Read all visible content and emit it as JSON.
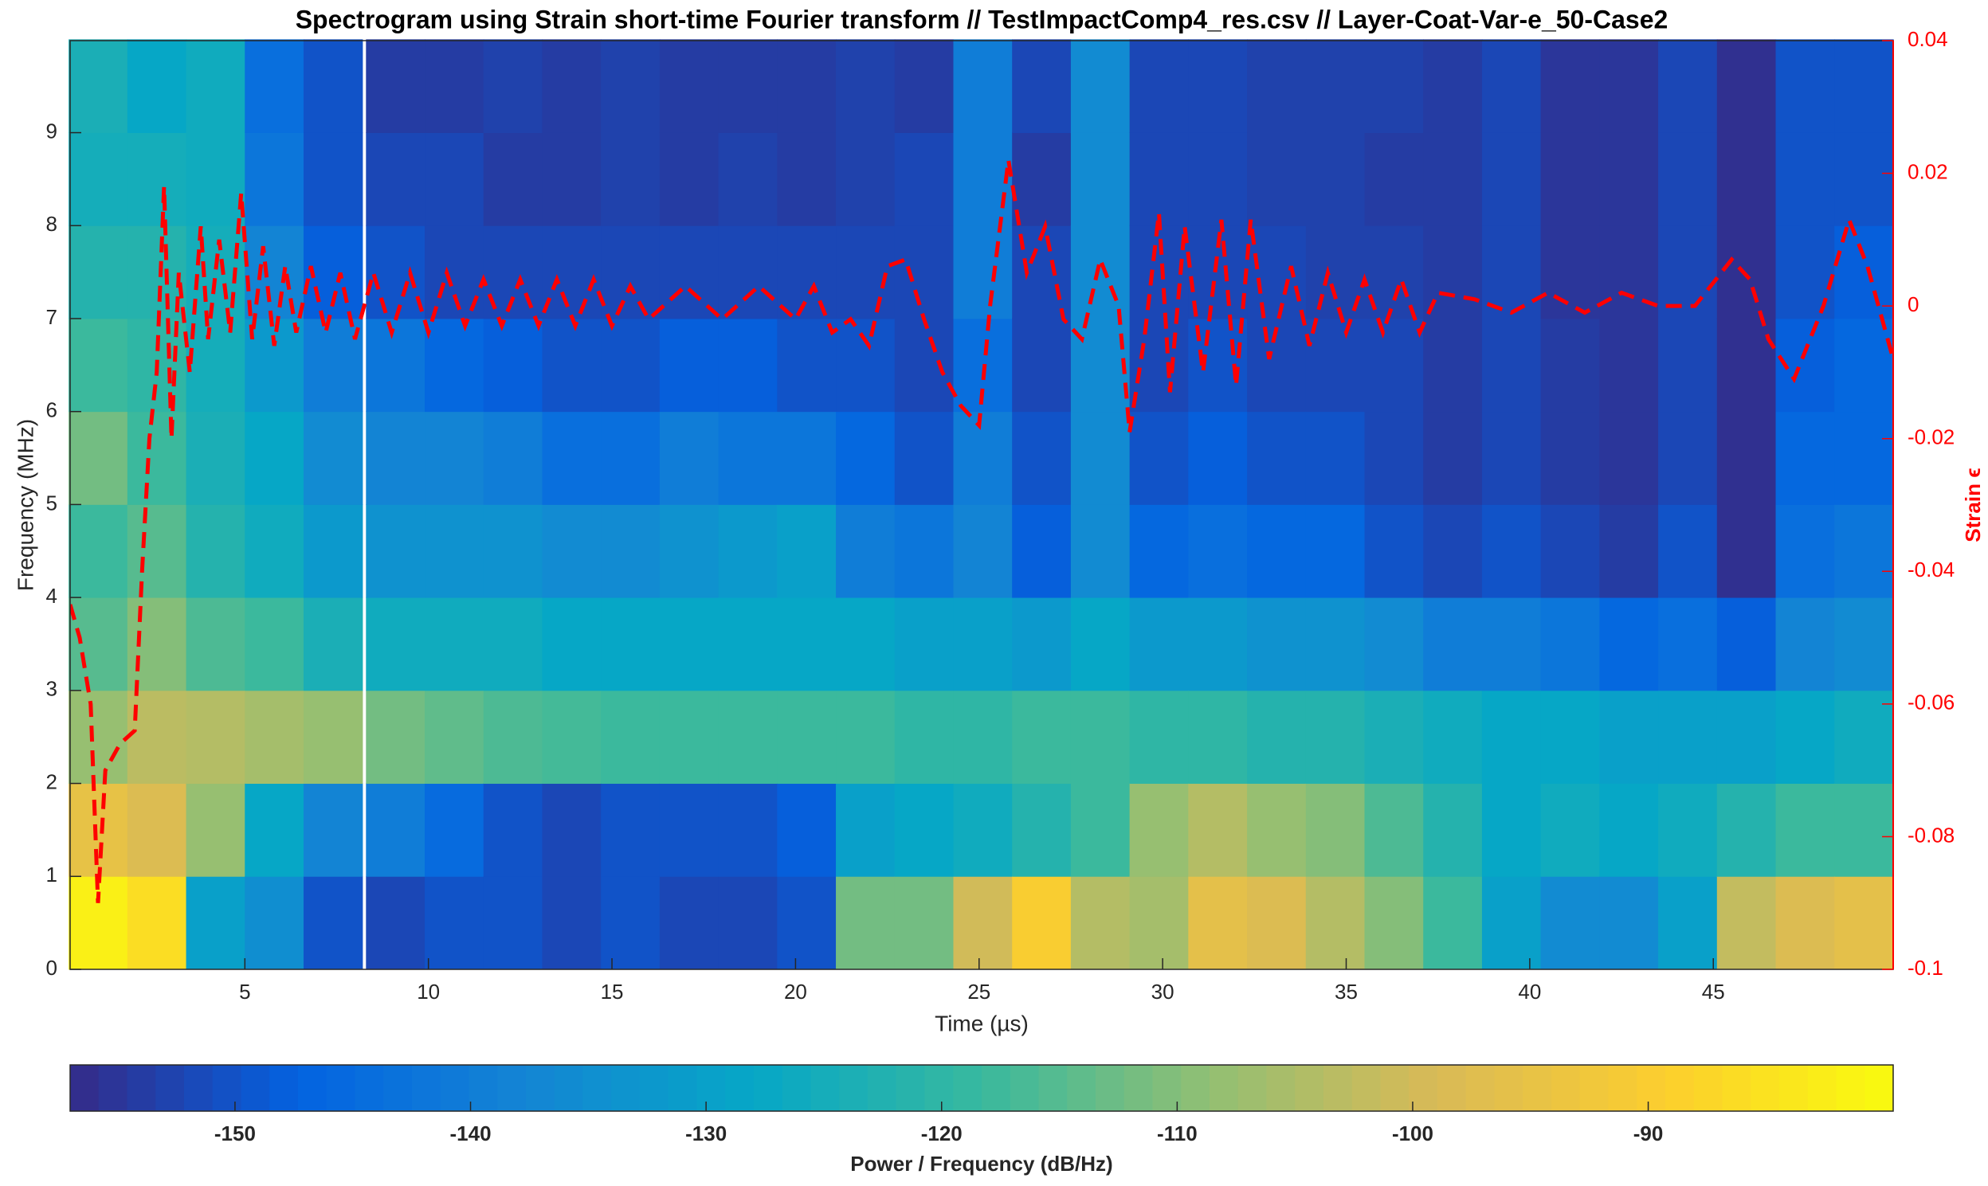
{
  "chart_data": {
    "type": "heatmap",
    "title": "Spectrogram using Strain short-time Fourier transform //  TestImpactComp4_res.csv  // Layer-Coat-Var-e_50-Case2",
    "x_label": "Time (µs)",
    "y_label": "Frequency (MHz)",
    "y2_label": "Strain ϵ",
    "colorbar_label": "Power / Frequency (dB/Hz)",
    "x": [
      1.0,
      2.6,
      4.2,
      5.8,
      7.4,
      9.1,
      10.7,
      12.3,
      13.9,
      15.5,
      17.1,
      18.7,
      20.3,
      21.9,
      23.5,
      25.1,
      26.7,
      28.3,
      29.9,
      31.5,
      33.1,
      34.7,
      36.3,
      37.9,
      39.5,
      41.1,
      42.7,
      44.3,
      45.9,
      47.5,
      49.1
    ],
    "y": [
      0.5,
      1.5,
      2.5,
      3.5,
      4.5,
      5.5,
      6.5,
      7.5,
      8.5,
      9.5
    ],
    "z": [
      [
        -82,
        -95,
        -108,
        -115,
        -118,
        -112,
        -118,
        -122,
        -125,
        -124
      ],
      [
        -86,
        -98,
        -103,
        -110,
        -115,
        -118,
        -120,
        -122,
        -125,
        -128
      ],
      [
        -130,
        -108,
        -104,
        -116,
        -122,
        -124,
        -125,
        -125,
        -126,
        -126
      ],
      [
        -135,
        -128,
        -106,
        -118,
        -126,
        -128,
        -132,
        -138,
        -142,
        -144
      ],
      [
        -150,
        -138,
        -108,
        -124,
        -132,
        -136,
        -140,
        -148,
        -150,
        -150
      ],
      [
        -152,
        -140,
        -112,
        -126,
        -134,
        -138,
        -142,
        -150,
        -152,
        -154
      ],
      [
        -150,
        -145,
        -114,
        -126,
        -134,
        -138,
        -146,
        -152,
        -152,
        -154
      ],
      [
        -150,
        -150,
        -116,
        -126,
        -134,
        -140,
        -148,
        -152,
        -154,
        -153
      ],
      [
        -152,
        -152,
        -117,
        -128,
        -136,
        -144,
        -150,
        -152,
        -154,
        -154
      ],
      [
        -150,
        -150,
        -118,
        -128,
        -136,
        -144,
        -150,
        -152,
        -153,
        -153
      ],
      [
        -152,
        -150,
        -118,
        -128,
        -134,
        -140,
        -148,
        -152,
        -154,
        -154
      ],
      [
        -152,
        -150,
        -118,
        -128,
        -132,
        -142,
        -148,
        -152,
        -153,
        -154
      ],
      [
        -150,
        -148,
        -118,
        -128,
        -130,
        -142,
        -150,
        -152,
        -154,
        -154
      ],
      [
        -112,
        -130,
        -118,
        -128,
        -140,
        -146,
        -150,
        -152,
        -153,
        -153
      ],
      [
        -112,
        -128,
        -120,
        -130,
        -142,
        -150,
        -152,
        -152,
        -152,
        -154
      ],
      [
        -100,
        -126,
        -120,
        -130,
        -138,
        -140,
        -144,
        -140,
        -140,
        -140
      ],
      [
        -90,
        -122,
        -118,
        -132,
        -148,
        -150,
        -152,
        -152,
        -154,
        -152
      ],
      [
        -104,
        -118,
        -118,
        -128,
        -136,
        -136,
        -136,
        -136,
        -136,
        -136
      ],
      [
        -106,
        -108,
        -120,
        -132,
        -146,
        -150,
        -152,
        -152,
        -152,
        -152
      ],
      [
        -96,
        -104,
        -120,
        -132,
        -144,
        -148,
        -150,
        -152,
        -152,
        -152
      ],
      [
        -98,
        -108,
        -122,
        -134,
        -146,
        -150,
        -152,
        -152,
        -153,
        -153
      ],
      [
        -104,
        -110,
        -122,
        -134,
        -146,
        -150,
        -152,
        -153,
        -153,
        -153
      ],
      [
        -110,
        -116,
        -124,
        -136,
        -150,
        -152,
        -152,
        -153,
        -154,
        -153
      ],
      [
        -118,
        -122,
        -126,
        -140,
        -152,
        -154,
        -154,
        -154,
        -154,
        -154
      ],
      [
        -130,
        -128,
        -128,
        -140,
        -150,
        -152,
        -152,
        -152,
        -152,
        -152
      ],
      [
        -136,
        -126,
        -128,
        -142,
        -152,
        -154,
        -154,
        -155,
        -155,
        -155
      ],
      [
        -136,
        -128,
        -130,
        -146,
        -154,
        -155,
        -155,
        -155,
        -155,
        -155
      ],
      [
        -130,
        -126,
        -130,
        -144,
        -150,
        -152,
        -152,
        -152,
        -152,
        -152
      ],
      [
        -102,
        -122,
        -130,
        -148,
        -156,
        -156,
        -156,
        -156,
        -156,
        -156
      ],
      [
        -98,
        -118,
        -128,
        -138,
        -144,
        -146,
        -148,
        -150,
        -150,
        -150
      ],
      [
        -96,
        -118,
        -126,
        -136,
        -142,
        -146,
        -146,
        -148,
        -150,
        -150
      ]
    ],
    "colormap": [
      "#352a87",
      "#0363e1",
      "#1485d4",
      "#06a7c6",
      "#38b99e",
      "#92bf73",
      "#d9ba56",
      "#fcce2e",
      "#f9fb0e"
    ],
    "clim": [
      -157,
      -79.6
    ],
    "cticks": [
      -150,
      -140,
      -130,
      -120,
      -110,
      -100,
      -90
    ],
    "xlim": [
      0.24,
      49.9
    ],
    "xticks": [
      5,
      10,
      15,
      20,
      25,
      30,
      35,
      40,
      45
    ],
    "ylim": [
      0,
      9.99
    ],
    "yticks": [
      0,
      1,
      2,
      3,
      4,
      5,
      6,
      7,
      8,
      9
    ],
    "y2lim": [
      -0.1,
      0.04
    ],
    "y2ticks": [
      -0.1,
      -0.08,
      -0.06,
      -0.04,
      -0.02,
      0,
      0.02,
      0.04
    ],
    "overlay": {
      "color": "#ff0000",
      "axis": "y2",
      "x": [
        0.24,
        0.5,
        0.8,
        1.0,
        1.2,
        1.6,
        2.0,
        2.2,
        2.4,
        2.6,
        2.8,
        3.0,
        3.2,
        3.5,
        3.8,
        4.0,
        4.3,
        4.6,
        4.9,
        5.2,
        5.5,
        5.8,
        6.1,
        6.4,
        6.8,
        7.2,
        7.6,
        8.0,
        8.5,
        9,
        9.5,
        10,
        10.5,
        11,
        11.5,
        12,
        12.5,
        13,
        13.5,
        14,
        14.5,
        15,
        15.5,
        16,
        17,
        18,
        19,
        20,
        20.5,
        21,
        21.5,
        22,
        22.5,
        23,
        23.5,
        24,
        24.5,
        25,
        25.3,
        25.8,
        26.3,
        26.8,
        27.3,
        27.8,
        28.3,
        28.8,
        29.1,
        29.5,
        29.9,
        30.2,
        30.6,
        31.1,
        31.6,
        32.0,
        32.4,
        32.9,
        33.5,
        34,
        34.5,
        35,
        35.5,
        36,
        36.5,
        37,
        37.5,
        38.5,
        39.5,
        40.5,
        41.5,
        42.5,
        43.5,
        44.5,
        45.5,
        46,
        46.5,
        47.2,
        48,
        48.7,
        49.2,
        49.9
      ],
      "values": [
        -0.045,
        -0.05,
        -0.06,
        -0.09,
        -0.07,
        -0.066,
        -0.064,
        -0.04,
        -0.02,
        -0.01,
        0.018,
        -0.02,
        0.005,
        -0.01,
        0.012,
        -0.005,
        0.01,
        -0.004,
        0.017,
        -0.005,
        0.009,
        -0.006,
        0.006,
        -0.004,
        0.006,
        -0.004,
        0.005,
        -0.005,
        0.005,
        -0.004,
        0.005,
        -0.004,
        0.005,
        -0.003,
        0.004,
        -0.003,
        0.004,
        -0.003,
        0.004,
        -0.003,
        0.004,
        -0.003,
        0.003,
        -0.002,
        0.003,
        -0.002,
        0.003,
        -0.002,
        0.003,
        -0.004,
        -0.002,
        -0.006,
        0.006,
        0.007,
        -0.002,
        -0.01,
        -0.015,
        -0.018,
        0.0,
        0.022,
        0.005,
        0.012,
        -0.002,
        -0.005,
        0.007,
        0.0,
        -0.019,
        -0.005,
        0.014,
        -0.013,
        0.012,
        -0.01,
        0.013,
        -0.012,
        0.013,
        -0.008,
        0.006,
        -0.006,
        0.005,
        -0.004,
        0.004,
        -0.004,
        0.004,
        -0.004,
        0.002,
        0.001,
        -0.001,
        0.002,
        -0.001,
        0.002,
        0.0,
        0.0,
        0.007,
        0.004,
        -0.005,
        -0.011,
        0.0,
        0.013,
        0.006,
        -0.008
      ]
    }
  }
}
